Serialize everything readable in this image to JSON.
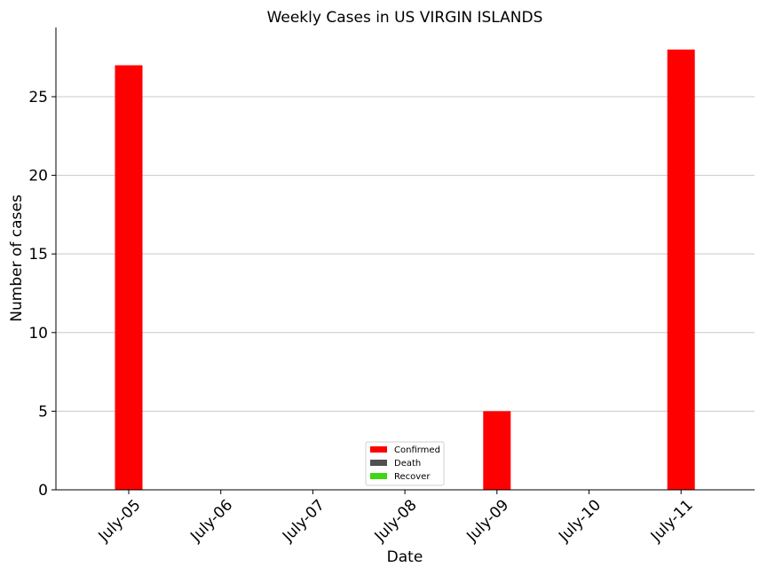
{
  "chart_data": {
    "type": "bar",
    "title": "Weekly Cases in US VIRGIN ISLANDS",
    "xlabel": "Date",
    "ylabel": "Number of cases",
    "categories": [
      "July-05",
      "July-06",
      "July-07",
      "July-08",
      "July-09",
      "July-10",
      "July-11"
    ],
    "series": [
      {
        "name": "Confirmed",
        "color": "#ff0000",
        "values": [
          27,
          0,
          0,
          0,
          5,
          0,
          28
        ]
      },
      {
        "name": "Death",
        "color": "#505050",
        "values": [
          0,
          0,
          0,
          0,
          0,
          0,
          0
        ]
      },
      {
        "name": "Recover",
        "color": "#3ed713",
        "values": [
          0,
          0,
          0,
          0,
          0,
          0,
          0
        ]
      }
    ],
    "ylim": [
      0,
      29.4
    ],
    "yticks": [
      0,
      5,
      10,
      15,
      20,
      25
    ],
    "grid": "horizontal",
    "legend_position": "bottom-center"
  }
}
